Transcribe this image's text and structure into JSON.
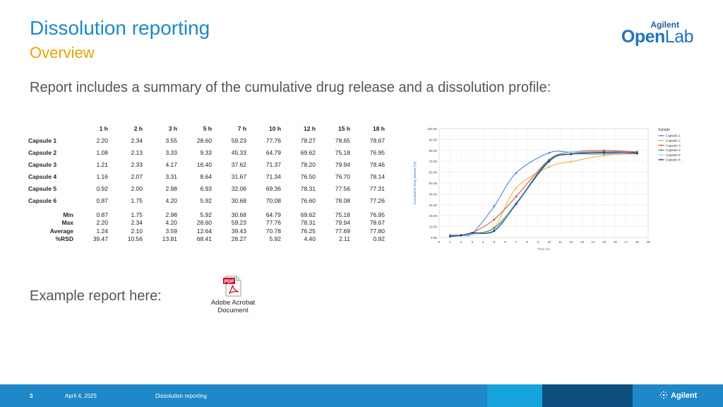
{
  "slide": {
    "title": "Dissolution reporting",
    "subtitle": "Overview",
    "lead": "Report includes a summary of the cumulative drug release and a dissolution profile:",
    "example": "Example report here:"
  },
  "logo": {
    "brand": "Agilent",
    "product_bold": "Open",
    "product_rest": "Lab"
  },
  "table": {
    "headers": [
      "1 h",
      "2 h",
      "3 h",
      "5 h",
      "7 h",
      "10 h",
      "12 h",
      "15 h",
      "18 h"
    ],
    "rows": [
      {
        "label": "Capsule 1",
        "values": [
          "2.20",
          "2.34",
          "3.55",
          "28.60",
          "59.23",
          "77.76",
          "78.27",
          "78.65",
          "78.67"
        ]
      },
      {
        "label": "Capsule 2",
        "values": [
          "1.08",
          "2.13",
          "3.33",
          "9.33",
          "45.33",
          "64.79",
          "69.62",
          "75.18",
          "76.95"
        ]
      },
      {
        "label": "Capsule 3",
        "values": [
          "1.21",
          "2.33",
          "4.17",
          "16.40",
          "37.62",
          "71.37",
          "78.20",
          "79.94",
          "78.46"
        ]
      },
      {
        "label": "Capsule 4",
        "values": [
          "1.16",
          "2.07",
          "3.31",
          "8.64",
          "31.67",
          "71.34",
          "76.50",
          "76.70",
          "78.14"
        ]
      },
      {
        "label": "Capsule 5",
        "values": [
          "0.92",
          "2.00",
          "2.98",
          "6.93",
          "32.06",
          "69.36",
          "78.31",
          "77.56",
          "77.31"
        ]
      },
      {
        "label": "Capsule 6",
        "values": [
          "0.87",
          "1.75",
          "4.20",
          "5.92",
          "30.68",
          "70.08",
          "76.60",
          "78.08",
          "77.26"
        ]
      }
    ],
    "stats": [
      {
        "label": "Min",
        "values": [
          "0.87",
          "1.75",
          "2.98",
          "5.92",
          "30.68",
          "64.79",
          "69.62",
          "75.18",
          "76.95"
        ]
      },
      {
        "label": "Max",
        "values": [
          "2.20",
          "2.34",
          "4.20",
          "28.60",
          "59.23",
          "77.76",
          "78.31",
          "79.94",
          "78.67"
        ]
      },
      {
        "label": "Average",
        "values": [
          "1.24",
          "2.10",
          "3.59",
          "12.64",
          "39.43",
          "70.78",
          "76.25",
          "77.69",
          "77.80"
        ]
      },
      {
        "label": "%RSD",
        "values": [
          "39.47",
          "10.56",
          "13.81",
          "68.41",
          "28.27",
          "5.92",
          "4.40",
          "2.11",
          "0.92"
        ]
      }
    ]
  },
  "chart_data": {
    "type": "line",
    "title": "",
    "xlabel": "Time (h)",
    "ylabel": "Cumulative drug release (%)",
    "xlim": [
      0,
      19
    ],
    "ylim": [
      0,
      100
    ],
    "x_ticks": [
      "0",
      "1",
      "2",
      "3",
      "4",
      "5",
      "6",
      "7",
      "8",
      "9",
      "10",
      "11",
      "12",
      "13",
      "14",
      "15",
      "16",
      "17",
      "18",
      "19"
    ],
    "y_ticks": [
      "0.00",
      "10.00",
      "20.00",
      "30.00",
      "40.00",
      "50.00",
      "60.00",
      "70.00",
      "80.00",
      "90.00",
      "100.00"
    ],
    "legend_title": "Sample",
    "legend_position": "right",
    "x": [
      1,
      2,
      3,
      5,
      7,
      10,
      12,
      15,
      18
    ],
    "series": [
      {
        "name": "Capsule 1",
        "color": "#4a86d8",
        "values": [
          2.2,
          2.34,
          3.55,
          28.6,
          59.23,
          77.76,
          78.27,
          78.65,
          78.67
        ]
      },
      {
        "name": "Capsule 2",
        "color": "#f2b440",
        "values": [
          1.08,
          2.13,
          3.33,
          9.33,
          45.33,
          64.79,
          69.62,
          75.18,
          76.95
        ]
      },
      {
        "name": "Capsule 3",
        "color": "#e0522e",
        "values": [
          1.21,
          2.33,
          4.17,
          16.4,
          37.62,
          71.37,
          78.2,
          79.94,
          78.46
        ]
      },
      {
        "name": "Capsule 4",
        "color": "#2a8a8a",
        "values": [
          1.16,
          2.07,
          3.31,
          8.64,
          31.67,
          71.34,
          76.5,
          76.7,
          78.14
        ]
      },
      {
        "name": "Capsule 5",
        "color": "#8fd0e8",
        "values": [
          0.92,
          2.0,
          2.98,
          6.93,
          32.06,
          69.36,
          78.31,
          77.56,
          77.31
        ]
      },
      {
        "name": "Capsule 6",
        "color": "#23336e",
        "values": [
          0.87,
          1.75,
          4.2,
          5.92,
          30.68,
          70.08,
          76.6,
          78.08,
          77.26
        ]
      }
    ]
  },
  "attachment": {
    "badge": "PDF",
    "label_line1": "Adobe Acrobat",
    "label_line2": "Document"
  },
  "footer": {
    "page": "3",
    "date": "April 4, 2025",
    "title": "Dissolution reporting",
    "brand": "Agilent"
  },
  "colors": {
    "title": "#1e88c9",
    "subtitle": "#e8a400",
    "footer": "#1e88c9",
    "footer_dark": "#0c4e7e",
    "footer_light": "#16a3dc"
  }
}
